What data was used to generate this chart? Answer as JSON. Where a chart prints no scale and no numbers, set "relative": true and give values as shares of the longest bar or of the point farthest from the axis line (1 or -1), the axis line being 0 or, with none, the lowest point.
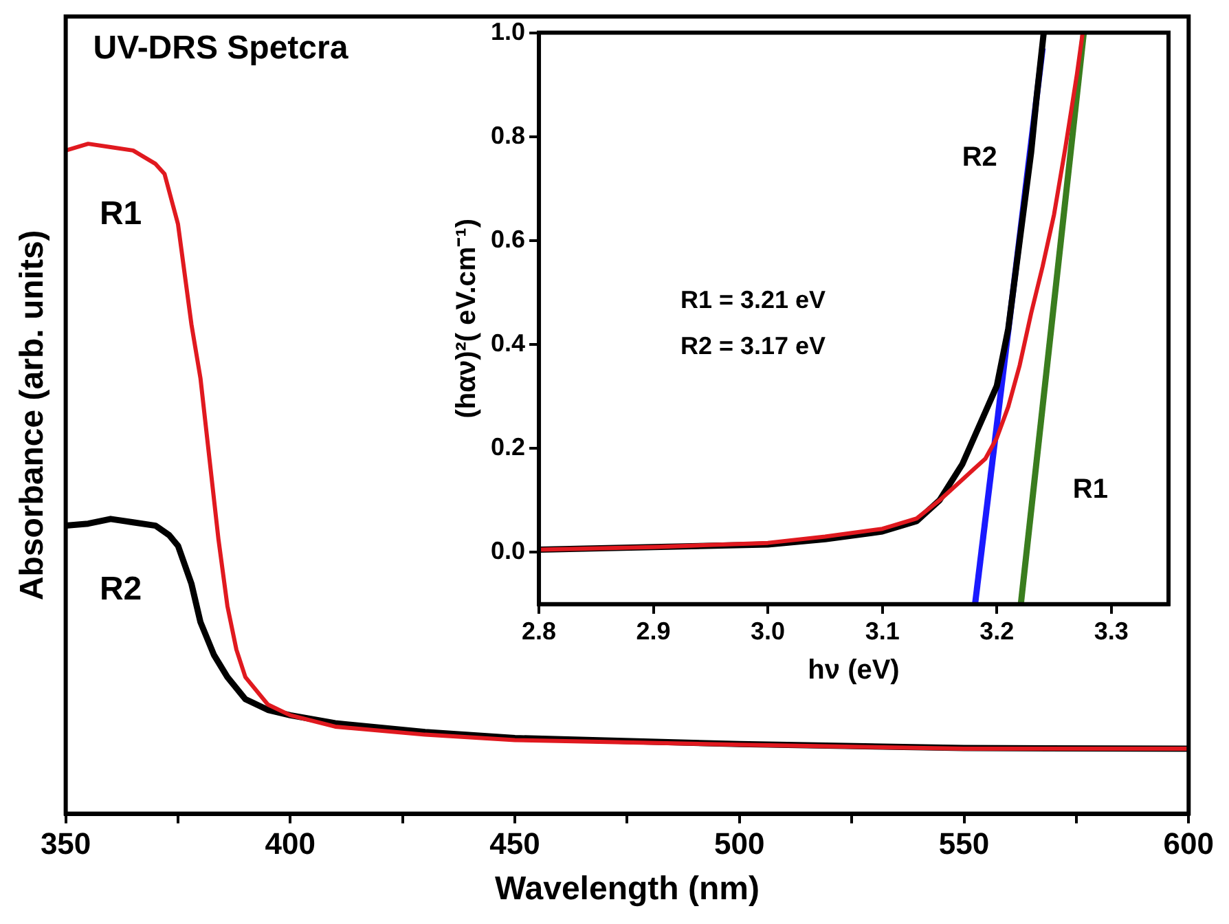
{
  "chart_data": [
    {
      "type": "line",
      "title": "UV-DRS Spetcra",
      "xlabel": "Wavelength (nm)",
      "ylabel": "Absorbance (arb. units)",
      "relative": true,
      "xlim": [
        350,
        600
      ],
      "xticks": [
        350,
        {
          "value": 375,
          "label": null
        },
        400,
        {
          "value": 425,
          "label": null
        },
        450,
        {
          "value": 475,
          "label": null
        },
        500,
        {
          "value": 525,
          "label": null
        },
        550,
        {
          "value": 575,
          "label": null
        },
        600
      ],
      "series": [
        {
          "name": "R1",
          "color": "#e0191f",
          "x": [
            350,
            355,
            360,
            365,
            370,
            372,
            375,
            378,
            380,
            382,
            384,
            386,
            388,
            390,
            395,
            400,
            410,
            430,
            450,
            500,
            550,
            600
          ],
          "values": [
            0.99,
            1.0,
            0.995,
            0.99,
            0.97,
            0.955,
            0.88,
            0.73,
            0.65,
            0.53,
            0.41,
            0.31,
            0.245,
            0.204,
            0.163,
            0.147,
            0.13,
            0.118,
            0.11,
            0.103,
            0.097,
            0.097
          ]
        },
        {
          "name": "R2",
          "color": "#000000",
          "x": [
            350,
            355,
            360,
            365,
            370,
            373,
            375,
            378,
            380,
            383,
            386,
            390,
            395,
            400,
            410,
            430,
            450,
            500,
            550,
            600
          ],
          "values": [
            0.43,
            0.433,
            0.44,
            0.435,
            0.43,
            0.416,
            0.4,
            0.343,
            0.286,
            0.237,
            0.204,
            0.171,
            0.155,
            0.147,
            0.135,
            0.122,
            0.113,
            0.104,
            0.098,
            0.097
          ]
        }
      ]
    },
    {
      "type": "line",
      "xlabel": "hν (eV)",
      "ylabel": "(hαν)²( eV.cm⁻¹)",
      "xlim": [
        2.8,
        3.35
      ],
      "xticks": [
        2.8,
        2.9,
        {
          "value": 3.0,
          "label": "3.0"
        },
        3.1,
        3.2,
        3.3
      ],
      "ylim": [
        -0.1,
        1.0
      ],
      "yticks": [
        {
          "value": 0,
          "label": "0.0"
        },
        0.2,
        0.4,
        0.6,
        0.8,
        {
          "value": 1.0,
          "label": "1.0"
        }
      ],
      "series": [
        {
          "color": "#e0191f",
          "x": [
            2.8,
            2.9,
            3.0,
            3.05,
            3.1,
            3.13,
            3.15,
            3.17,
            3.18,
            3.19,
            3.2,
            3.21,
            3.22,
            3.23,
            3.24,
            3.25,
            3.26,
            3.27,
            3.275
          ],
          "values": [
            0.005,
            0.01,
            0.018,
            0.03,
            0.045,
            0.065,
            0.1,
            0.14,
            0.16,
            0.18,
            0.22,
            0.28,
            0.36,
            0.46,
            0.55,
            0.65,
            0.78,
            0.92,
            1.0
          ]
        },
        {
          "color": "#000000",
          "x": [
            2.8,
            2.9,
            3.0,
            3.05,
            3.1,
            3.13,
            3.15,
            3.17,
            3.18,
            3.19,
            3.2,
            3.21,
            3.22,
            3.23,
            3.235,
            3.241
          ],
          "values": [
            0.005,
            0.01,
            0.015,
            0.025,
            0.04,
            0.06,
            0.1,
            0.17,
            0.22,
            0.27,
            0.32,
            0.43,
            0.6,
            0.77,
            0.88,
            1.0
          ]
        },
        {
          "color": "#1a1aff",
          "x": [
            3.181,
            3.24
          ],
          "values": [
            -0.1,
            0.97
          ]
        },
        {
          "color": "#3a7d1e",
          "x": [
            3.221,
            3.276
          ],
          "values": [
            -0.1,
            1.0
          ]
        }
      ],
      "annotations": [
        "R2",
        "R1",
        "R1 = 3.21 eV",
        "R2 = 3.17 eV"
      ]
    }
  ]
}
